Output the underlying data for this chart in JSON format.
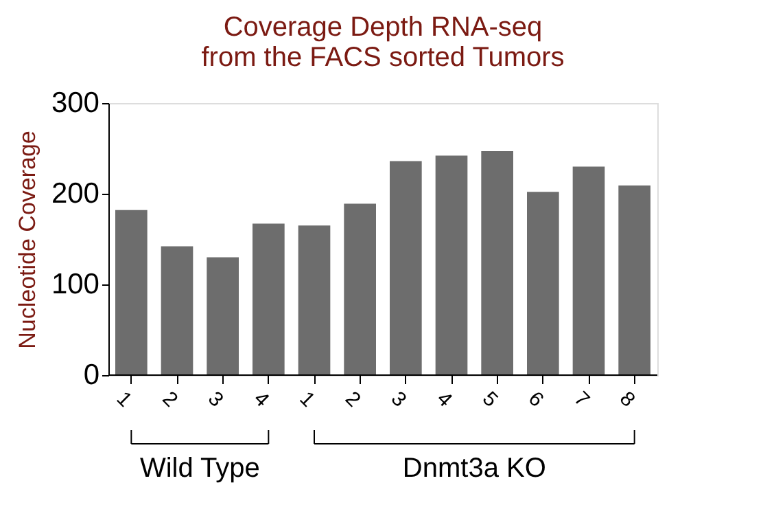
{
  "chart_data": {
    "type": "bar",
    "title": "Coverage Depth RNA-seq\nfrom the FACS sorted Tumors",
    "ylabel": "Nucleotide Coverage",
    "categories": [
      "1",
      "2",
      "3",
      "4",
      "1",
      "2",
      "3",
      "4",
      "5",
      "6",
      "7",
      "8"
    ],
    "values": [
      182,
      142,
      130,
      167,
      165,
      189,
      236,
      242,
      247,
      202,
      230,
      209
    ],
    "color": "#6d6d6d",
    "ylim": [
      0,
      300
    ],
    "yticks": [
      0,
      100,
      200,
      300
    ],
    "grid": false,
    "annotations": [
      "Wild Type",
      "Dnmt3a KO"
    ]
  }
}
